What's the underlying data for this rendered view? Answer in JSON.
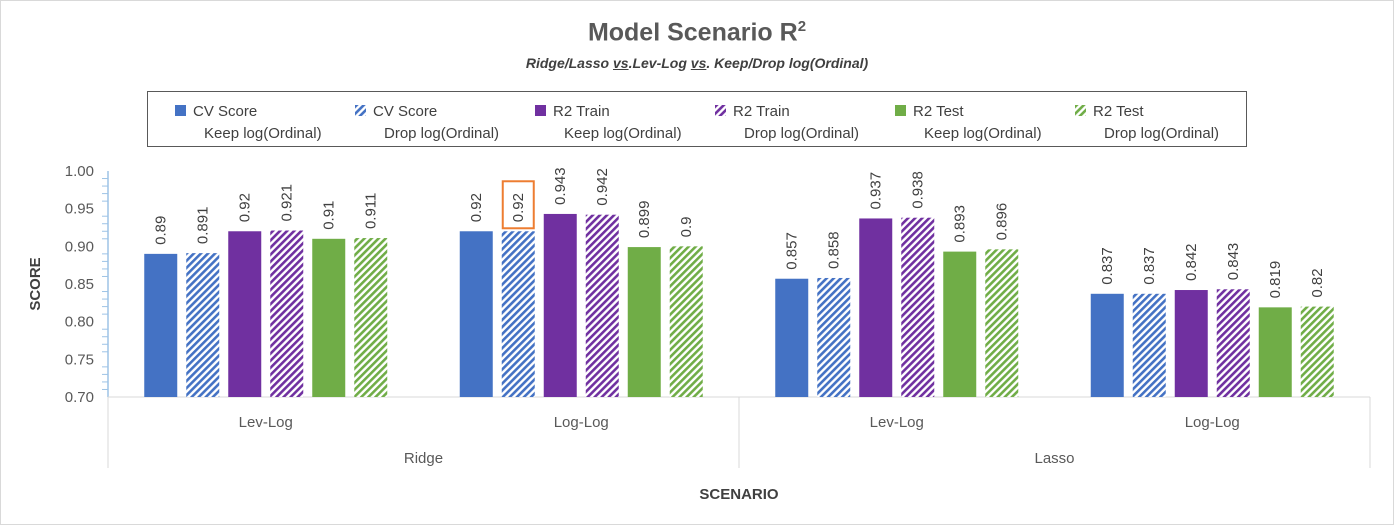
{
  "chart_data": {
    "type": "bar",
    "title": "Model Scenario R",
    "title_superscript": "2",
    "subtitle_parts": [
      {
        "text": "Ridge/Lasso ",
        "underline": false
      },
      {
        "text": "vs",
        "underline": true
      },
      {
        "text": ".Lev-Log ",
        "underline": false
      },
      {
        "text": "vs",
        "underline": true
      },
      {
        "text": ". Keep/Drop log(Ordinal)",
        "underline": false
      }
    ],
    "ylabel": "SCORE",
    "xlabel": "SCENARIO",
    "ylim": [
      0.7,
      1.0
    ],
    "yticks": [
      "0.70",
      "0.75",
      "0.80",
      "0.85",
      "0.90",
      "0.95",
      "1.00"
    ],
    "grid": false,
    "legend_position": "top",
    "groups": [
      "Ridge",
      "Lasso"
    ],
    "categories": [
      "Lev-Log",
      "Log-Log",
      "Lev-Log",
      "Log-Log"
    ],
    "series": [
      {
        "name": "CV Score Keep log(Ordinal)",
        "name_line1": "CV Score",
        "name_line2": "Keep log(Ordinal)",
        "color": "#4472c4",
        "pattern": "solid",
        "values": [
          0.89,
          0.92,
          0.857,
          0.837
        ],
        "labels": [
          "0.89",
          "0.92",
          "0.857",
          "0.837"
        ]
      },
      {
        "name": "CV Score Drop log(Ordinal)",
        "name_line1": "CV Score",
        "name_line2": "Drop log(Ordinal)",
        "color": "#4472c4",
        "pattern": "hatched",
        "values": [
          0.891,
          0.92,
          0.858,
          0.837
        ],
        "labels": [
          "0.891",
          "0.92",
          "0.858",
          "0.837"
        ]
      },
      {
        "name": "R2 Train Keep log(Ordinal)",
        "name_line1": "R2 Train",
        "name_line2": "Keep log(Ordinal)",
        "color": "#7030a0",
        "pattern": "solid",
        "values": [
          0.92,
          0.943,
          0.937,
          0.842
        ],
        "labels": [
          "0.92",
          "0.943",
          "0.937",
          "0.842"
        ]
      },
      {
        "name": "R2 Train Drop log(Ordinal)",
        "name_line1": "R2 Train",
        "name_line2": "Drop log(Ordinal)",
        "color": "#7030a0",
        "pattern": "hatched",
        "values": [
          0.921,
          0.942,
          0.938,
          0.843
        ],
        "labels": [
          "0.921",
          "0.942",
          "0.938",
          "0.843"
        ]
      },
      {
        "name": "R2 Test Keep log(Ordinal)",
        "name_line1": "R2 Test",
        "name_line2": "Keep log(Ordinal)",
        "color": "#70ad47",
        "pattern": "solid",
        "values": [
          0.91,
          0.899,
          0.893,
          0.819
        ],
        "labels": [
          "0.91",
          "0.899",
          "0.893",
          "0.819"
        ]
      },
      {
        "name": "R2 Test Drop log(Ordinal)",
        "name_line1": "R2 Test",
        "name_line2": "Drop log(Ordinal)",
        "color": "#70ad47",
        "pattern": "hatched",
        "values": [
          0.911,
          0.9,
          0.896,
          0.82
        ],
        "labels": [
          "0.911",
          "0.9",
          "0.896",
          "0.82"
        ]
      }
    ],
    "highlighted_label": {
      "series_index": 1,
      "category_index": 1,
      "box_color": "#ed7d31"
    }
  }
}
